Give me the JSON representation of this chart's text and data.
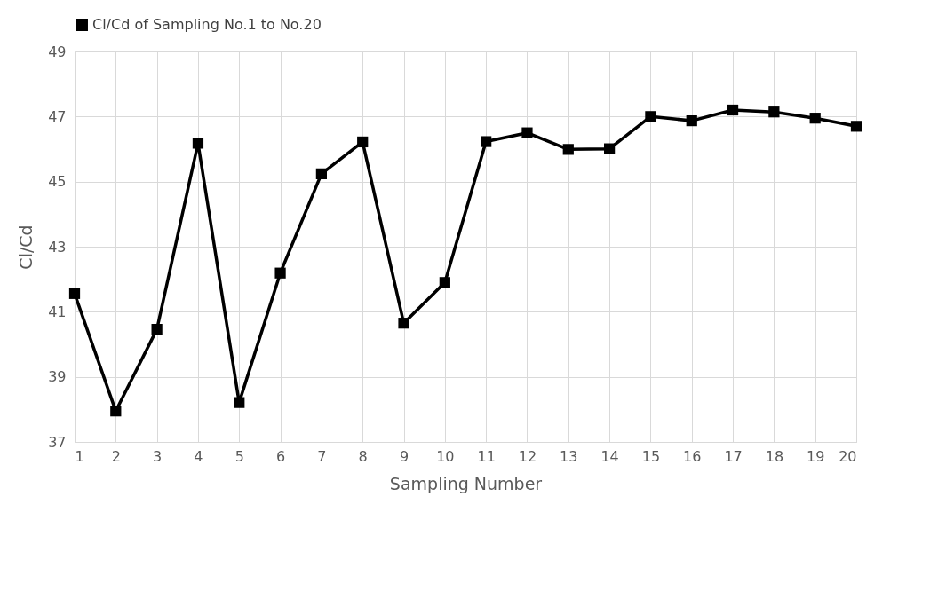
{
  "chart_data": {
    "type": "line",
    "xlabel": "Sampling Number",
    "ylabel": "Cl/Cd",
    "x": [
      1,
      2,
      3,
      4,
      5,
      6,
      7,
      8,
      9,
      10,
      11,
      12,
      13,
      14,
      15,
      16,
      17,
      18,
      19,
      20
    ],
    "series": [
      {
        "name": "Cl/Cd of Sampling No.1 to No.20",
        "color": "#000000",
        "values": [
          41.56,
          37.95,
          40.46,
          46.18,
          38.21,
          42.19,
          45.24,
          46.22,
          40.65,
          41.9,
          46.23,
          46.5,
          45.99,
          46.01,
          47.0,
          46.87,
          47.2,
          47.14,
          46.95,
          46.7
        ]
      }
    ],
    "xlim": [
      1,
      20
    ],
    "xticks": [
      1,
      2,
      3,
      4,
      5,
      6,
      7,
      8,
      9,
      10,
      11,
      12,
      13,
      14,
      15,
      16,
      17,
      18,
      19,
      20
    ],
    "ylim": [
      37,
      49
    ],
    "yticks": [
      37,
      39,
      41,
      43,
      45,
      47,
      49
    ],
    "grid": true,
    "legend": "top",
    "marker": "square",
    "line_style": "solid"
  }
}
